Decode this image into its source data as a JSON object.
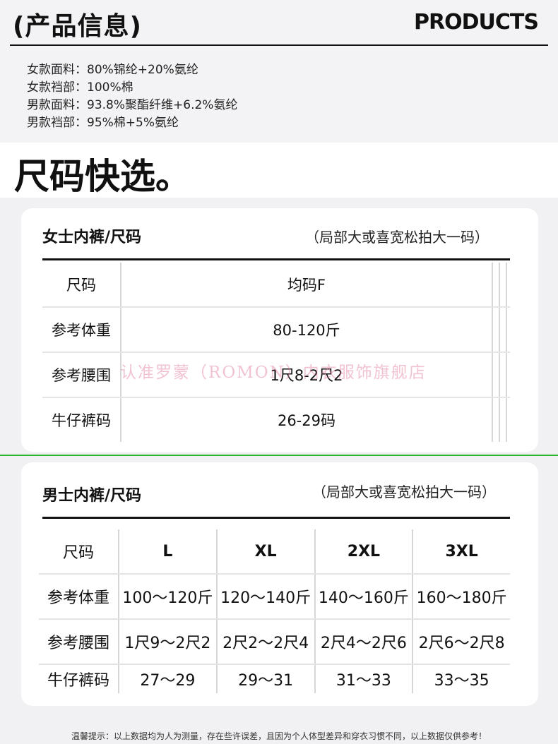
{
  "header": {
    "title": "(产品信息)",
    "title_en": "PRODUCTS"
  },
  "materials": [
    "女款面料：80%锦纶+20%氨纶",
    "女款裆部：100%棉",
    "男款面料：93.8%聚酯纤维+6.2%氨纶",
    "男款裆部：95%棉+5%氨纶"
  ],
  "quick_title": "尺码快选。",
  "women": {
    "title": "女士内裤/尺码",
    "note": "（局部大或喜宽松拍大一码）",
    "rows": [
      [
        "尺码",
        "均码F",
        "",
        "",
        ""
      ],
      [
        "参考体重",
        "80-120斤",
        "",
        "",
        ""
      ],
      [
        "参考腰围",
        "1尺8-2尺2",
        "",
        "",
        ""
      ],
      [
        "牛仔裤码",
        "26-29码",
        "",
        "",
        ""
      ]
    ]
  },
  "men": {
    "title": "男士内裤/尺码",
    "note": "（局部大或喜宽松拍大一码）",
    "rows": [
      [
        "尺码",
        "L",
        "XL",
        "2XL",
        "3XL"
      ],
      [
        "参考体重",
        "100～120斤",
        "120～140斤",
        "140～160斤",
        "160～180斤"
      ],
      [
        "参考腰围",
        "1尺9～2尺2",
        "2尺2～2尺4",
        "2尺4～2尺6",
        "2尺6～2尺8"
      ],
      [
        "牛仔裤码",
        "27～29",
        "29～31",
        "31～33",
        "33～35"
      ]
    ]
  },
  "watermark": "认准罗蒙（ROMON）内衣服饰旗舰店",
  "footer_note": "温馨提示：以上数据均为人为测量，存在些许误差，且因为个人体型差异和穿衣习惯不同，以上数据仅供参考！",
  "colors": {
    "divider": "#2db52d",
    "watermark": "#e07896"
  }
}
